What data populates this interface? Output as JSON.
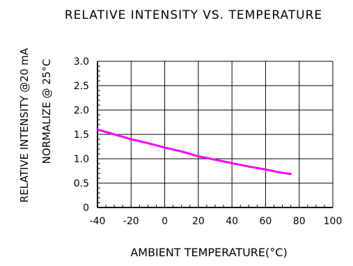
{
  "chart_data": {
    "type": "line",
    "title": "RELATIVE INTENSITY VS. TEMPERATURE",
    "xlabel": "AMBIENT TEMPERATURE(°C)",
    "ylabel": "RELATIVE INTENSITY @20 mA",
    "ylabel2": "NORMALIZE @ 25°C",
    "xlim": [
      -40,
      100
    ],
    "ylim": [
      0,
      3.0
    ],
    "grid": true,
    "x_ticks": [
      -40,
      -20,
      0,
      20,
      40,
      60,
      80,
      100
    ],
    "x_tick_labels": [
      "-40",
      "-20",
      "0",
      "20",
      "40",
      "60",
      "80",
      "100"
    ],
    "y_ticks": [
      0,
      0.5,
      1.0,
      1.5,
      2.0,
      2.5,
      3.0
    ],
    "y_tick_labels": [
      "0",
      "0.5",
      "1.0",
      "1.5",
      "2.0",
      "2.5",
      "3.0"
    ],
    "series": [
      {
        "color": "#ff00ff",
        "x": [
          -40,
          -30,
          -20,
          -10,
          0,
          10,
          20,
          30,
          40,
          50,
          60,
          70,
          75
        ],
        "y": [
          1.6,
          1.5,
          1.4,
          1.32,
          1.23,
          1.15,
          1.05,
          0.98,
          0.91,
          0.84,
          0.78,
          0.71,
          0.69
        ]
      }
    ]
  }
}
